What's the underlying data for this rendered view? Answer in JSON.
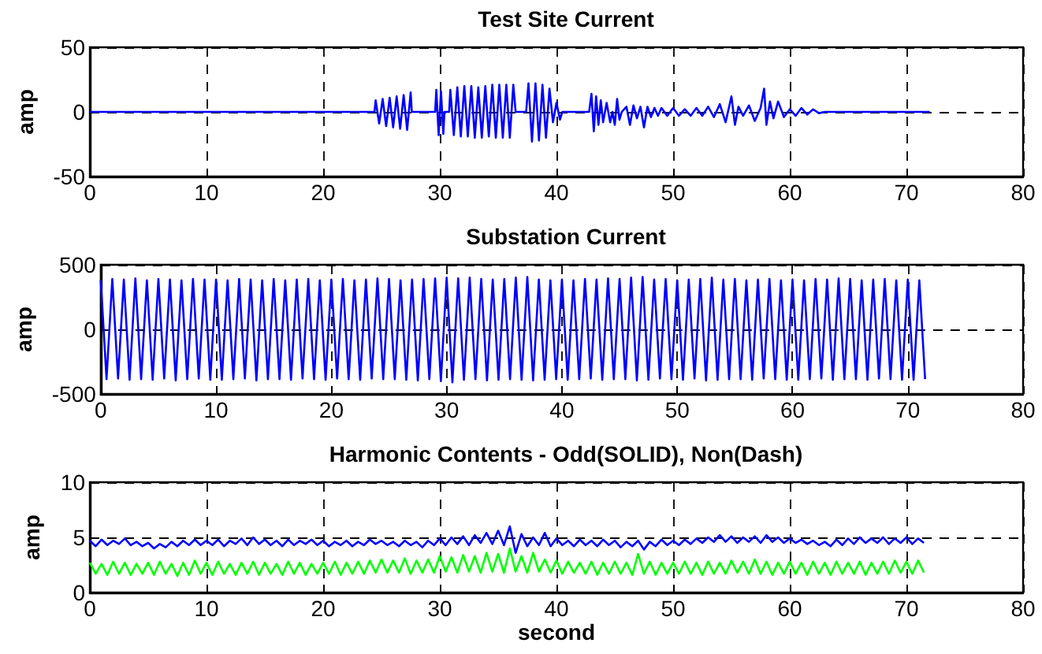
{
  "chart_data": [
    {
      "type": "line",
      "title": "Test Site Current",
      "ylabel": "amp",
      "xlim": [
        0,
        80
      ],
      "xticks": [
        0,
        10,
        20,
        30,
        40,
        50,
        60,
        70,
        80
      ],
      "ylim": [
        -50,
        50
      ],
      "yticks": [
        -50,
        0,
        50
      ],
      "grid": true,
      "series": [
        {
          "color": "#0000ff",
          "x": [
            0,
            24.4,
            24.5,
            24.8,
            25.1,
            25.4,
            25.7,
            26.0,
            26.3,
            26.6,
            26.9,
            27.2,
            27.5,
            27.6,
            29.6,
            29.7,
            29.9,
            30.1,
            30.3,
            30.4,
            30.8,
            30.9,
            31.2,
            31.5,
            31.8,
            32.1,
            32.4,
            32.7,
            33.0,
            33.3,
            33.6,
            33.9,
            34.2,
            34.5,
            34.8,
            35.1,
            35.4,
            35.7,
            36.0,
            36.3,
            36.5,
            37.4,
            37.6,
            37.9,
            38.2,
            38.5,
            38.8,
            39.1,
            39.4,
            39.7,
            40.0,
            40.3,
            40.5,
            42.8,
            43.0,
            43.2,
            43.4,
            43.6,
            43.8,
            44.0,
            44.3,
            44.6,
            44.8,
            45.0,
            45.2,
            45.4,
            45.6,
            46.0,
            46.3,
            46.6,
            46.9,
            47.2,
            47.5,
            47.8,
            48.1,
            48.4,
            48.7,
            49.0,
            49.5,
            50.0,
            50.5,
            51.0,
            51.5,
            52.0,
            52.5,
            53.0,
            53.5,
            54.0,
            54.5,
            55.0,
            55.3,
            55.6,
            56.0,
            56.5,
            57.0,
            57.5,
            57.8,
            58.0,
            58.3,
            58.6,
            59.0,
            59.5,
            60.0,
            60.5,
            61.0,
            61.5,
            62.0,
            62.5,
            63.0,
            64.0,
            72.0
          ],
          "values": [
            0,
            0,
            9,
            -9,
            10,
            -11,
            11,
            -12,
            12,
            -13,
            13,
            -14,
            15,
            0,
            0,
            17,
            -18,
            16,
            -17,
            0,
            0,
            17,
            -18,
            19,
            -19,
            20,
            -19,
            20,
            -20,
            19,
            -20,
            20,
            -19,
            21,
            -20,
            21,
            -20,
            21,
            -20,
            21,
            0,
            0,
            22,
            -23,
            22,
            -22,
            21,
            -20,
            18,
            -8,
            7,
            -6,
            0,
            0,
            14,
            -15,
            12,
            -10,
            9,
            -8,
            7,
            -8,
            0,
            -10,
            10,
            -6,
            0,
            4,
            -10,
            5,
            -5,
            4,
            -12,
            4,
            -4,
            3,
            -3,
            3,
            -3,
            3,
            -3,
            2,
            -3,
            3,
            -3,
            4,
            -4,
            6,
            -8,
            12,
            -10,
            4,
            -3,
            5,
            -7,
            3,
            18,
            -10,
            8,
            -5,
            8,
            -4,
            2,
            -3,
            3,
            -2,
            2,
            -1,
            0,
            0,
            0
          ]
        }
      ]
    },
    {
      "type": "line",
      "title": "Substation Current",
      "ylabel": "amp",
      "xlim": [
        0,
        80
      ],
      "xticks": [
        0,
        10,
        20,
        30,
        40,
        50,
        60,
        70,
        80
      ],
      "ylim": [
        -500,
        500
      ],
      "yticks": [
        -500,
        0,
        500
      ],
      "grid": true,
      "x": [
        0,
        0.5,
        1,
        1.5,
        2,
        2.5,
        3,
        3.5,
        4,
        4.5,
        5,
        5.5,
        6,
        6.5,
        7,
        7.5,
        8,
        8.5,
        9,
        9.5,
        10,
        10.5,
        11,
        11.5,
        12,
        12.5,
        13,
        13.5,
        14,
        14.5,
        15,
        15.5,
        16,
        16.5,
        17,
        17.5,
        18,
        18.5,
        19,
        19.5,
        20,
        20.5,
        21,
        21.5,
        22,
        22.5,
        23,
        23.5,
        24,
        24.5,
        25,
        25.5,
        26,
        26.5,
        27,
        27.5,
        28,
        28.5,
        29,
        29.5,
        30,
        30.5,
        31,
        31.5,
        32,
        32.5,
        33,
        33.5,
        34,
        34.5,
        35,
        35.5,
        36,
        36.5,
        37,
        37.5,
        38,
        38.5,
        39,
        39.5,
        40,
        40.5,
        41,
        41.5,
        42,
        42.5,
        43,
        43.5,
        44,
        44.5,
        45,
        45.5,
        46,
        46.5,
        47,
        47.5,
        48,
        48.5,
        49,
        49.5,
        50,
        50.5,
        51,
        51.5,
        52,
        52.5,
        53,
        53.5,
        54,
        54.5,
        55,
        55.5,
        56,
        56.5,
        57,
        57.5,
        58,
        58.5,
        59,
        59.5,
        60,
        60.5,
        61,
        61.5,
        62,
        62.5,
        63,
        63.5,
        64,
        64.5,
        65,
        65.5,
        66,
        66.5,
        67,
        67.5,
        68,
        68.5,
        69,
        69.5,
        70,
        70.5,
        71,
        71.5
      ],
      "series": [
        {
          "color": "#0000ff",
          "values": [
            380,
            -385,
            390,
            -380,
            385,
            -390,
            395,
            -385,
            380,
            -390,
            390,
            -380,
            385,
            -395,
            380,
            -385,
            390,
            -380,
            385,
            -390,
            385,
            -390,
            380,
            -385,
            390,
            -380,
            385,
            -395,
            380,
            -385,
            390,
            -385,
            380,
            -390,
            385,
            -380,
            390,
            -385,
            380,
            -390,
            385,
            -380,
            390,
            -385,
            380,
            -390,
            385,
            -380,
            395,
            -385,
            390,
            -385,
            380,
            -390,
            385,
            -395,
            390,
            -385,
            395,
            -400,
            400,
            -410,
            395,
            -390,
            400,
            -385,
            390,
            -395,
            385,
            -390,
            390,
            -385,
            400,
            -390,
            405,
            -395,
            385,
            -390,
            380,
            -385,
            385,
            -390,
            380,
            -385,
            390,
            -380,
            385,
            -390,
            395,
            -385,
            390,
            -385,
            400,
            -395,
            405,
            -390,
            385,
            -380,
            390,
            -385,
            380,
            -390,
            385,
            -380,
            390,
            -395,
            400,
            -390,
            385,
            -385,
            390,
            -385,
            380,
            -390,
            385,
            -380,
            390,
            -385,
            380,
            -390,
            385,
            -390,
            380,
            -385,
            390,
            -380,
            385,
            -390,
            395,
            -385,
            390,
            -385,
            380,
            -390,
            385,
            -380,
            390,
            -385,
            380,
            -390,
            385,
            -390,
            380,
            -385
          ]
        }
      ]
    },
    {
      "type": "line",
      "title": "Harmonic Contents - Odd(SOLID), Non(Dash)",
      "xlabel": "second",
      "ylabel": "amp",
      "xlim": [
        0,
        80
      ],
      "xticks": [
        0,
        10,
        20,
        30,
        40,
        50,
        60,
        70,
        80
      ],
      "ylim": [
        0,
        10
      ],
      "yticks": [
        0,
        5,
        10
      ],
      "grid": true,
      "x": [
        0,
        0.5,
        1,
        1.5,
        2,
        2.5,
        3,
        3.5,
        4,
        4.5,
        5,
        5.5,
        6,
        6.5,
        7,
        7.5,
        8,
        8.5,
        9,
        9.5,
        10,
        10.5,
        11,
        11.5,
        12,
        12.5,
        13,
        13.5,
        14,
        14.5,
        15,
        15.5,
        16,
        16.5,
        17,
        17.5,
        18,
        18.5,
        19,
        19.5,
        20,
        20.5,
        21,
        21.5,
        22,
        22.5,
        23,
        23.5,
        24,
        24.5,
        25,
        25.5,
        26,
        26.5,
        27,
        27.5,
        28,
        28.5,
        29,
        29.5,
        30,
        30.5,
        31,
        31.5,
        32,
        32.5,
        33,
        33.5,
        34,
        34.5,
        35,
        35.5,
        36,
        36.5,
        37,
        37.5,
        38,
        38.5,
        39,
        39.5,
        40,
        40.5,
        41,
        41.5,
        42,
        42.5,
        43,
        43.5,
        44,
        44.5,
        45,
        45.5,
        46,
        46.5,
        47,
        47.5,
        48,
        48.5,
        49,
        49.5,
        50,
        50.5,
        51,
        51.5,
        52,
        52.5,
        53,
        53.5,
        54,
        54.5,
        55,
        55.5,
        56,
        56.5,
        57,
        57.5,
        58,
        58.5,
        59,
        59.5,
        60,
        60.5,
        61,
        61.5,
        62,
        62.5,
        63,
        63.5,
        64,
        64.5,
        65,
        65.5,
        66,
        66.5,
        67,
        67.5,
        68,
        68.5,
        69,
        69.5,
        70,
        70.5,
        71,
        71.5
      ],
      "series": [
        {
          "color": "#0000ff",
          "values": [
            4.7,
            4.2,
            4.8,
            4.3,
            4.7,
            4.4,
            4.9,
            4.3,
            4.6,
            4.2,
            4.5,
            4.0,
            4.4,
            4.1,
            4.6,
            4.2,
            4.7,
            4.3,
            4.8,
            4.3,
            4.7,
            4.3,
            4.8,
            4.2,
            4.7,
            4.4,
            4.9,
            4.3,
            5.0,
            4.4,
            4.8,
            4.3,
            4.7,
            4.2,
            4.8,
            4.3,
            4.7,
            4.4,
            4.8,
            4.3,
            4.7,
            4.2,
            4.6,
            4.3,
            4.7,
            4.2,
            4.6,
            4.3,
            4.8,
            4.4,
            4.7,
            4.3,
            4.6,
            4.2,
            4.7,
            4.3,
            4.6,
            4.1,
            4.7,
            4.3,
            4.9,
            4.3,
            5.0,
            4.4,
            5.1,
            4.3,
            5.2,
            4.5,
            5.4,
            4.4,
            5.6,
            4.3,
            6.0,
            3.6,
            5.3,
            4.2,
            5.0,
            4.3,
            5.4,
            4.2,
            4.9,
            4.3,
            4.7,
            4.2,
            4.8,
            4.3,
            4.7,
            4.2,
            4.8,
            4.3,
            4.7,
            4.1,
            4.6,
            4.2,
            4.7,
            3.9,
            4.6,
            4.2,
            4.8,
            4.3,
            4.7,
            4.3,
            4.8,
            4.4,
            4.9,
            4.5,
            5.0,
            4.6,
            5.2,
            4.6,
            5.1,
            4.5,
            5.0,
            4.6,
            5.1,
            4.5,
            5.2,
            4.6,
            5.0,
            4.5,
            4.9,
            4.5,
            4.8,
            4.4,
            4.7,
            4.3,
            4.6,
            4.2,
            4.8,
            4.3,
            4.9,
            4.4,
            5.0,
            4.5,
            4.9,
            4.5,
            5.0,
            4.4,
            4.9,
            4.5,
            5.0,
            4.4,
            4.9,
            4.5
          ]
        },
        {
          "color": "#00ff00",
          "values": [
            2.7,
            1.7,
            2.6,
            1.6,
            2.8,
            1.7,
            2.7,
            1.6,
            2.6,
            1.7,
            2.7,
            1.6,
            2.8,
            1.7,
            2.6,
            1.5,
            2.7,
            1.6,
            2.9,
            1.7,
            2.7,
            1.6,
            2.8,
            1.7,
            2.6,
            1.6,
            2.7,
            1.7,
            2.8,
            1.6,
            2.7,
            1.7,
            2.6,
            1.6,
            2.8,
            1.7,
            2.7,
            1.6,
            2.6,
            1.7,
            2.7,
            1.7,
            2.8,
            1.6,
            2.7,
            1.7,
            2.8,
            1.7,
            2.9,
            1.8,
            3.0,
            1.8,
            2.9,
            1.8,
            3.1,
            1.7,
            2.9,
            1.8,
            3.0,
            1.8,
            3.3,
            1.9,
            3.2,
            1.8,
            3.4,
            1.9,
            3.3,
            1.8,
            3.6,
            1.9,
            3.5,
            1.8,
            4.0,
            1.9,
            3.3,
            1.8,
            3.6,
            1.9,
            3.0,
            1.8,
            2.9,
            1.7,
            2.8,
            1.8,
            2.7,
            1.7,
            2.8,
            1.6,
            2.7,
            1.7,
            2.8,
            1.7,
            2.7,
            1.6,
            3.5,
            1.7,
            2.8,
            1.6,
            2.7,
            1.7,
            2.7,
            1.7,
            2.8,
            1.7,
            2.7,
            1.6,
            2.8,
            1.7,
            2.7,
            1.7,
            2.9,
            1.8,
            2.8,
            1.7,
            3.0,
            1.7,
            2.8,
            1.6,
            2.7,
            1.7,
            2.8,
            1.7,
            2.7,
            1.6,
            2.8,
            1.7,
            2.7,
            1.6,
            2.8,
            1.7,
            2.7,
            1.7,
            2.8,
            1.6,
            2.7,
            1.7,
            2.8,
            1.7,
            2.9,
            1.8,
            2.8,
            1.7,
            2.9,
            1.8
          ]
        }
      ]
    }
  ]
}
